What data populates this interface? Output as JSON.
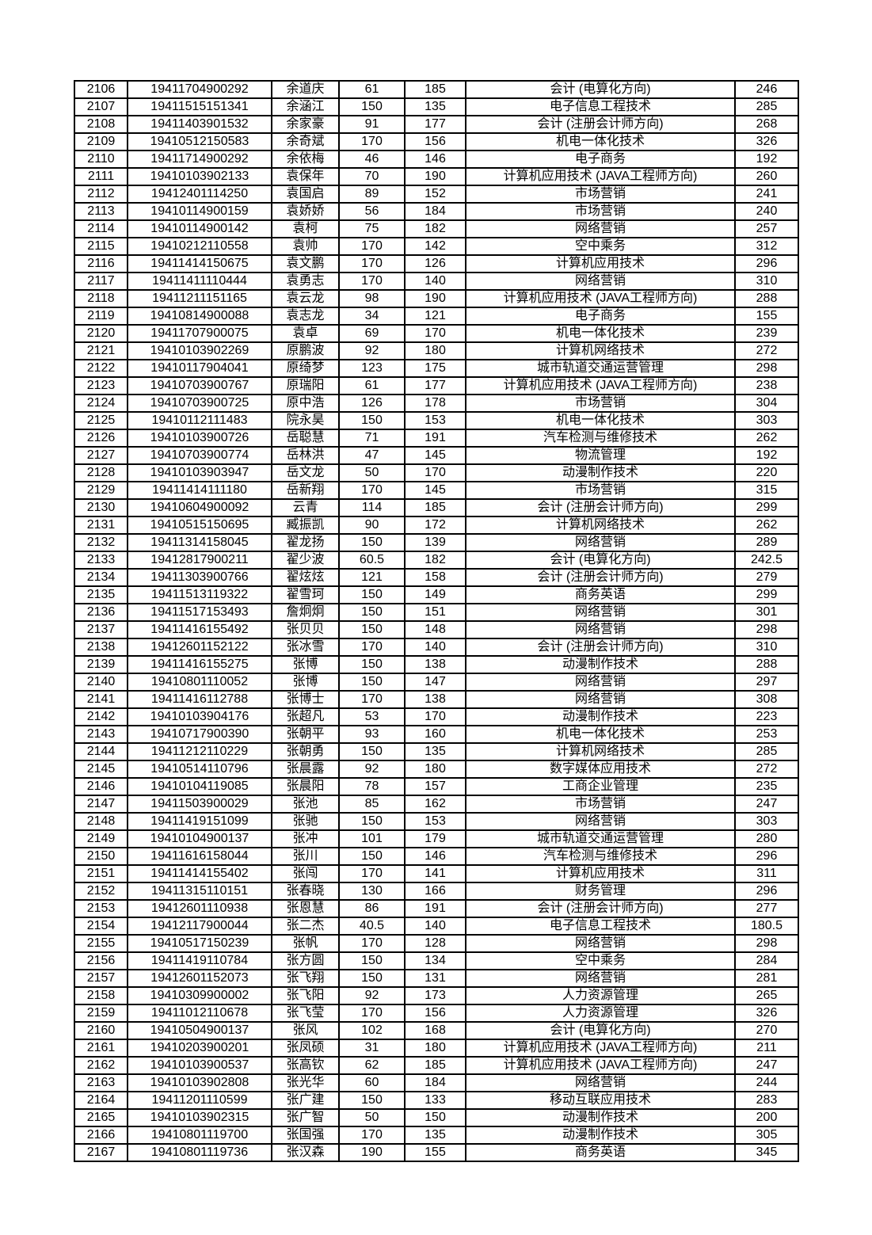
{
  "document": {
    "background_color": "#ffffff",
    "grid_color": "#000000",
    "text_color": "#000000"
  },
  "table": {
    "column_keys": [
      "seq",
      "exam-number",
      "name",
      "score1",
      "score2",
      "major",
      "total"
    ],
    "rows": [
      [
        "2106",
        "19411704900292",
        "余道庆",
        "61",
        "185",
        "会计 (电算化方向)",
        "246"
      ],
      [
        "2107",
        "19411515151341",
        "余涵江",
        "150",
        "135",
        "电子信息工程技术",
        "285"
      ],
      [
        "2108",
        "19411403901532",
        "余家豪",
        "91",
        "177",
        "会计 (注册会计师方向)",
        "268"
      ],
      [
        "2109",
        "19410512150583",
        "余奇斌",
        "170",
        "156",
        "机电一体化技术",
        "326"
      ],
      [
        "2110",
        "19411714900292",
        "余依梅",
        "46",
        "146",
        "电子商务",
        "192"
      ],
      [
        "2111",
        "19410103902133",
        "袁保年",
        "70",
        "190",
        "计算机应用技术 (JAVA工程师方向)",
        "260"
      ],
      [
        "2112",
        "19412401114250",
        "袁国启",
        "89",
        "152",
        "市场营销",
        "241"
      ],
      [
        "2113",
        "19410114900159",
        "袁娇娇",
        "56",
        "184",
        "市场营销",
        "240"
      ],
      [
        "2114",
        "19410114900142",
        "袁柯",
        "75",
        "182",
        "网络营销",
        "257"
      ],
      [
        "2115",
        "19410212110558",
        "袁帅",
        "170",
        "142",
        "空中乘务",
        "312"
      ],
      [
        "2116",
        "19411414150675",
        "袁文鹏",
        "170",
        "126",
        "计算机应用技术",
        "296"
      ],
      [
        "2117",
        "19411411110444",
        "袁勇志",
        "170",
        "140",
        "网络营销",
        "310"
      ],
      [
        "2118",
        "19411211151165",
        "袁云龙",
        "98",
        "190",
        "计算机应用技术 (JAVA工程师方向)",
        "288"
      ],
      [
        "2119",
        "19410814900088",
        "袁志龙",
        "34",
        "121",
        "电子商务",
        "155"
      ],
      [
        "2120",
        "19411707900075",
        "袁卓",
        "69",
        "170",
        "机电一体化技术",
        "239"
      ],
      [
        "2121",
        "19410103902269",
        "原鹏波",
        "92",
        "180",
        "计算机网络技术",
        "272"
      ],
      [
        "2122",
        "19410117904041",
        "原绮梦",
        "123",
        "175",
        "城市轨道交通运营管理",
        "298"
      ],
      [
        "2123",
        "19410703900767",
        "原瑞阳",
        "61",
        "177",
        "计算机应用技术 (JAVA工程师方向)",
        "238"
      ],
      [
        "2124",
        "19410703900725",
        "原中浩",
        "126",
        "178",
        "市场营销",
        "304"
      ],
      [
        "2125",
        "19410112111483",
        "院永昊",
        "150",
        "153",
        "机电一体化技术",
        "303"
      ],
      [
        "2126",
        "19410103900726",
        "岳聪慧",
        "71",
        "191",
        "汽车检测与维修技术",
        "262"
      ],
      [
        "2127",
        "19410703900774",
        "岳林洪",
        "47",
        "145",
        "物流管理",
        "192"
      ],
      [
        "2128",
        "19410103903947",
        "岳文龙",
        "50",
        "170",
        "动漫制作技术",
        "220"
      ],
      [
        "2129",
        "19411414111180",
        "岳新翔",
        "170",
        "145",
        "市场营销",
        "315"
      ],
      [
        "2130",
        "19410604900092",
        "云青",
        "114",
        "185",
        "会计 (注册会计师方向)",
        "299"
      ],
      [
        "2131",
        "19410515150695",
        "臧振凯",
        "90",
        "172",
        "计算机网络技术",
        "262"
      ],
      [
        "2132",
        "19411314158045",
        "翟龙扬",
        "150",
        "139",
        "网络营销",
        "289"
      ],
      [
        "2133",
        "19412817900211",
        "翟少波",
        "60.5",
        "182",
        "会计 (电算化方向)",
        "242.5"
      ],
      [
        "2134",
        "19411303900766",
        "翟炫炫",
        "121",
        "158",
        "会计 (注册会计师方向)",
        "279"
      ],
      [
        "2135",
        "19411513119322",
        "翟雪珂",
        "150",
        "149",
        "商务英语",
        "299"
      ],
      [
        "2136",
        "19411517153493",
        "詹炯炯",
        "150",
        "151",
        "网络营销",
        "301"
      ],
      [
        "2137",
        "19411416155492",
        "张贝贝",
        "150",
        "148",
        "网络营销",
        "298"
      ],
      [
        "2138",
        "19412601152122",
        "张冰雪",
        "170",
        "140",
        "会计 (注册会计师方向)",
        "310"
      ],
      [
        "2139",
        "19411416155275",
        "张博",
        "150",
        "138",
        "动漫制作技术",
        "288"
      ],
      [
        "2140",
        "19410801110052",
        "张博",
        "150",
        "147",
        "网络营销",
        "297"
      ],
      [
        "2141",
        "19411416112788",
        "张博士",
        "170",
        "138",
        "网络营销",
        "308"
      ],
      [
        "2142",
        "19410103904176",
        "张超凡",
        "53",
        "170",
        "动漫制作技术",
        "223"
      ],
      [
        "2143",
        "19410717900390",
        "张朝平",
        "93",
        "160",
        "机电一体化技术",
        "253"
      ],
      [
        "2144",
        "19411212110229",
        "张朝勇",
        "150",
        "135",
        "计算机网络技术",
        "285"
      ],
      [
        "2145",
        "19410514110796",
        "张晨露",
        "92",
        "180",
        "数字媒体应用技术",
        "272"
      ],
      [
        "2146",
        "19410104119085",
        "张晨阳",
        "78",
        "157",
        "工商企业管理",
        "235"
      ],
      [
        "2147",
        "19411503900029",
        "张池",
        "85",
        "162",
        "市场营销",
        "247"
      ],
      [
        "2148",
        "19411419151099",
        "张驰",
        "150",
        "153",
        "网络营销",
        "303"
      ],
      [
        "2149",
        "19410104900137",
        "张冲",
        "101",
        "179",
        "城市轨道交通运营管理",
        "280"
      ],
      [
        "2150",
        "19411616158044",
        "张川",
        "150",
        "146",
        "汽车检测与维修技术",
        "296"
      ],
      [
        "2151",
        "19411414155402",
        "张闯",
        "170",
        "141",
        "计算机应用技术",
        "311"
      ],
      [
        "2152",
        "19411315110151",
        "张春晓",
        "130",
        "166",
        "财务管理",
        "296"
      ],
      [
        "2153",
        "19412601110938",
        "张恩慧",
        "86",
        "191",
        "会计 (注册会计师方向)",
        "277"
      ],
      [
        "2154",
        "19412117900044",
        "张二杰",
        "40.5",
        "140",
        "电子信息工程技术",
        "180.5"
      ],
      [
        "2155",
        "19410517150239",
        "张帆",
        "170",
        "128",
        "网络营销",
        "298"
      ],
      [
        "2156",
        "19411419110784",
        "张方圆",
        "150",
        "134",
        "空中乘务",
        "284"
      ],
      [
        "2157",
        "19412601152073",
        "张飞翔",
        "150",
        "131",
        "网络营销",
        "281"
      ],
      [
        "2158",
        "19410309900002",
        "张飞阳",
        "92",
        "173",
        "人力资源管理",
        "265"
      ],
      [
        "2159",
        "19411012110678",
        "张飞莹",
        "170",
        "156",
        "人力资源管理",
        "326"
      ],
      [
        "2160",
        "19410504900137",
        "张风",
        "102",
        "168",
        "会计 (电算化方向)",
        "270"
      ],
      [
        "2161",
        "19410203900201",
        "张凤硕",
        "31",
        "180",
        "计算机应用技术 (JAVA工程师方向)",
        "211"
      ],
      [
        "2162",
        "19410103900537",
        "张高钦",
        "62",
        "185",
        "计算机应用技术 (JAVA工程师方向)",
        "247"
      ],
      [
        "2163",
        "19410103902808",
        "张光华",
        "60",
        "184",
        "网络营销",
        "244"
      ],
      [
        "2164",
        "19411201110599",
        "张广建",
        "150",
        "133",
        "移动互联应用技术",
        "283"
      ],
      [
        "2165",
        "19410103902315",
        "张广智",
        "50",
        "150",
        "动漫制作技术",
        "200"
      ],
      [
        "2166",
        "19410801119700",
        "张国强",
        "170",
        "135",
        "动漫制作技术",
        "305"
      ],
      [
        "2167",
        "19410801119736",
        "张汉森",
        "190",
        "155",
        "商务英语",
        "345"
      ]
    ]
  }
}
